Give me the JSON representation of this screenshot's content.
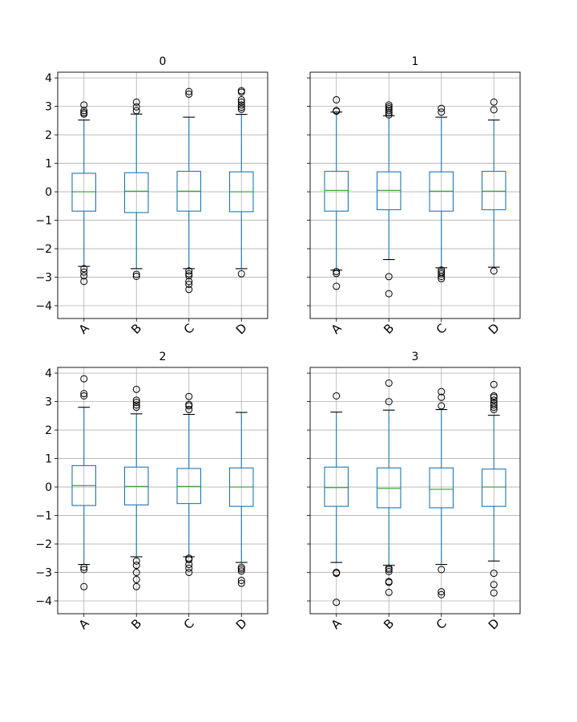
{
  "chart_data": {
    "type": "box",
    "layout": "2x2 grid",
    "grid": true,
    "sharey": true,
    "ylim": [
      -4.45,
      4.2
    ],
    "yticks": [
      -4,
      -3,
      -2,
      -1,
      0,
      1,
      2,
      3,
      4
    ],
    "colors": {
      "box": "#1f77b4",
      "median": "#2ca02c",
      "whisker": "#1f77b4",
      "cap": "#000000",
      "flier": "#000000",
      "grid": "#b0b0b0"
    },
    "panels": [
      {
        "title": "0",
        "categories": [
          "A",
          "B",
          "C",
          "D"
        ],
        "boxes": [
          {
            "q1": -0.68,
            "median": 0.0,
            "q3": 0.65,
            "whislo": -2.62,
            "whishi": 2.52,
            "fliers": [
              -2.7,
              -2.82,
              -2.95,
              -3.15,
              2.73,
              2.78,
              2.85,
              3.05
            ]
          },
          {
            "q1": -0.73,
            "median": 0.02,
            "q3": 0.67,
            "whislo": -2.7,
            "whishi": 2.73,
            "fliers": [
              -2.9,
              -2.97,
              2.85,
              2.98,
              3.15
            ]
          },
          {
            "q1": -0.68,
            "median": 0.02,
            "q3": 0.72,
            "whislo": -2.7,
            "whishi": 2.62,
            "fliers": [
              -2.78,
              -2.88,
              -2.95,
              -3.15,
              -3.25,
              -3.43,
              3.43,
              3.52
            ]
          },
          {
            "q1": -0.7,
            "median": 0.0,
            "q3": 0.7,
            "whislo": -2.7,
            "whishi": 2.72,
            "fliers": [
              -2.88,
              2.9,
              2.97,
              3.05,
              3.15,
              3.23,
              3.5,
              3.55
            ]
          }
        ]
      },
      {
        "title": "1",
        "categories": [
          "A",
          "B",
          "C",
          "D"
        ],
        "boxes": [
          {
            "q1": -0.68,
            "median": 0.05,
            "q3": 0.72,
            "whislo": -2.75,
            "whishi": 2.8,
            "fliers": [
              -2.8,
              -2.87,
              -3.32,
              2.83,
              2.85,
              3.23
            ]
          },
          {
            "q1": -0.63,
            "median": 0.05,
            "q3": 0.7,
            "whislo": -2.38,
            "whishi": 2.67,
            "fliers": [
              -2.98,
              -3.58,
              2.7,
              2.78,
              2.85,
              2.92,
              2.98,
              3.05
            ]
          },
          {
            "q1": -0.68,
            "median": 0.02,
            "q3": 0.7,
            "whislo": -2.67,
            "whishi": 2.62,
            "fliers": [
              -2.75,
              -2.82,
              -2.88,
              -2.97,
              -3.05,
              2.8,
              2.93
            ]
          },
          {
            "q1": -0.63,
            "median": 0.02,
            "q3": 0.72,
            "whislo": -2.65,
            "whishi": 2.52,
            "fliers": [
              -2.78,
              2.88,
              3.15
            ]
          }
        ]
      },
      {
        "title": "2",
        "categories": [
          "A",
          "B",
          "C",
          "D"
        ],
        "boxes": [
          {
            "q1": -0.65,
            "median": 0.05,
            "q3": 0.75,
            "whislo": -2.72,
            "whishi": 2.8,
            "fliers": [
              -2.82,
              -2.9,
              -3.5,
              3.2,
              3.28,
              3.8
            ]
          },
          {
            "q1": -0.63,
            "median": 0.02,
            "q3": 0.7,
            "whislo": -2.45,
            "whishi": 2.57,
            "fliers": [
              -2.6,
              -2.75,
              -3.0,
              -3.25,
              -3.5,
              2.8,
              2.88,
              2.97,
              3.05,
              3.43
            ]
          },
          {
            "q1": -0.58,
            "median": 0.02,
            "q3": 0.65,
            "whislo": -2.45,
            "whishi": 2.55,
            "fliers": [
              -2.5,
              -2.55,
              -2.72,
              -2.85,
              -3.0,
              2.72,
              2.85,
              2.9,
              3.18
            ]
          },
          {
            "q1": -0.68,
            "median": 0.0,
            "q3": 0.67,
            "whislo": -2.65,
            "whishi": 2.62,
            "fliers": [
              -2.82,
              -2.88,
              -2.95,
              -3.28,
              -3.38
            ]
          }
        ]
      },
      {
        "title": "3",
        "categories": [
          "A",
          "B",
          "C",
          "D"
        ],
        "boxes": [
          {
            "q1": -0.68,
            "median": -0.02,
            "q3": 0.7,
            "whislo": -2.65,
            "whishi": 2.63,
            "fliers": [
              -3.0,
              -3.03,
              -4.05,
              3.2
            ]
          },
          {
            "q1": -0.73,
            "median": -0.05,
            "q3": 0.67,
            "whislo": -2.75,
            "whishi": 2.7,
            "fliers": [
              -2.85,
              -2.9,
              -2.97,
              -3.32,
              -3.35,
              -3.7,
              3.0,
              3.65
            ]
          },
          {
            "q1": -0.73,
            "median": -0.08,
            "q3": 0.67,
            "whislo": -2.72,
            "whishi": 2.72,
            "fliers": [
              -2.9,
              -3.68,
              -3.78,
              2.85,
              3.15,
              3.35
            ]
          },
          {
            "q1": -0.68,
            "median": 0.0,
            "q3": 0.63,
            "whislo": -2.6,
            "whishi": 2.52,
            "fliers": [
              -3.03,
              -3.43,
              -3.72,
              2.72,
              2.8,
              2.88,
              2.95,
              3.05,
              3.15,
              3.2,
              3.6
            ]
          }
        ]
      }
    ]
  }
}
